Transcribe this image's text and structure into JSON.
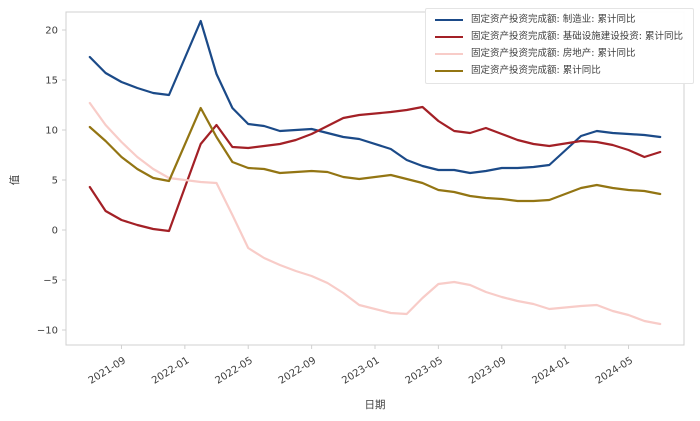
{
  "chart_data": {
    "type": "line",
    "title": "",
    "xlabel": "日期",
    "ylabel": "值",
    "grid": false,
    "legend_position": "upper right",
    "ylim": [
      -11.5,
      21.8
    ],
    "y_ticks": [
      -10,
      -5,
      0,
      5,
      10,
      15,
      20
    ],
    "x_ticks": [
      "2021-09",
      "2022-01",
      "2022-05",
      "2022-09",
      "2023-01",
      "2023-05",
      "2023-09",
      "2024-01",
      "2024-05"
    ],
    "x": [
      "2021-07",
      "2021-08",
      "2021-09",
      "2021-10",
      "2021-11",
      "2021-12",
      "2022-02",
      "2022-03",
      "2022-04",
      "2022-05",
      "2022-06",
      "2022-07",
      "2022-08",
      "2022-09",
      "2022-10",
      "2022-11",
      "2022-12",
      "2023-02",
      "2023-03",
      "2023-04",
      "2023-05",
      "2023-06",
      "2023-07",
      "2023-08",
      "2023-09",
      "2023-10",
      "2023-11",
      "2023-12",
      "2024-02",
      "2024-03",
      "2024-04",
      "2024-05",
      "2024-06",
      "2024-07"
    ],
    "series": [
      {
        "name": "固定资产投资完成额: 制造业: 累计同比",
        "color": "#1b4a88",
        "values": [
          17.3,
          15.7,
          14.8,
          14.2,
          13.7,
          13.5,
          20.9,
          15.6,
          12.2,
          10.6,
          10.4,
          9.9,
          10.0,
          10.1,
          9.7,
          9.3,
          9.1,
          8.1,
          7.0,
          6.4,
          6.0,
          6.0,
          5.7,
          5.9,
          6.2,
          6.2,
          6.3,
          6.5,
          9.4,
          9.9,
          9.7,
          9.6,
          9.5,
          9.3
        ]
      },
      {
        "name": "固定资产投资完成额: 基础设施建设投资: 累计同比",
        "color": "#a32026",
        "values": [
          4.3,
          1.9,
          1.0,
          0.5,
          0.1,
          -0.1,
          8.6,
          10.5,
          8.3,
          8.2,
          8.4,
          8.6,
          9.0,
          9.6,
          10.4,
          11.2,
          11.5,
          11.8,
          12.0,
          12.3,
          10.9,
          9.9,
          9.7,
          10.2,
          9.6,
          9.0,
          8.6,
          8.4,
          8.9,
          8.8,
          8.5,
          8.0,
          7.3,
          7.8
        ]
      },
      {
        "name": "固定资产投资完成额: 房地产: 累计同比",
        "color": "#f8ccc8",
        "values": [
          12.7,
          10.5,
          8.8,
          7.3,
          6.1,
          5.2,
          4.8,
          4.7,
          1.5,
          -1.8,
          -2.8,
          -3.5,
          -4.1,
          -4.6,
          -5.3,
          -6.3,
          -7.5,
          -8.3,
          -8.4,
          -6.8,
          -5.4,
          -5.2,
          -5.5,
          -6.2,
          -6.7,
          -7.1,
          -7.4,
          -7.9,
          -7.6,
          -7.5,
          -8.1,
          -8.5,
          -9.1,
          -9.4
        ]
      },
      {
        "name": "固定资产投资完成额: 累计同比",
        "color": "#937513",
        "values": [
          10.3,
          8.9,
          7.3,
          6.1,
          5.2,
          4.9,
          12.2,
          9.3,
          6.8,
          6.2,
          6.1,
          5.7,
          5.8,
          5.9,
          5.8,
          5.3,
          5.1,
          5.5,
          5.1,
          4.7,
          4.0,
          3.8,
          3.4,
          3.2,
          3.1,
          2.9,
          2.9,
          3.0,
          4.2,
          4.5,
          4.2,
          4.0,
          3.9,
          3.6
        ]
      }
    ],
    "style": {
      "spine_color": "#d0d0d0",
      "tick_label_color": "#3d3d3d",
      "axis_label_color": "#3f3f3f",
      "background_color": "#ffffff",
      "line_width": 2.2
    }
  }
}
